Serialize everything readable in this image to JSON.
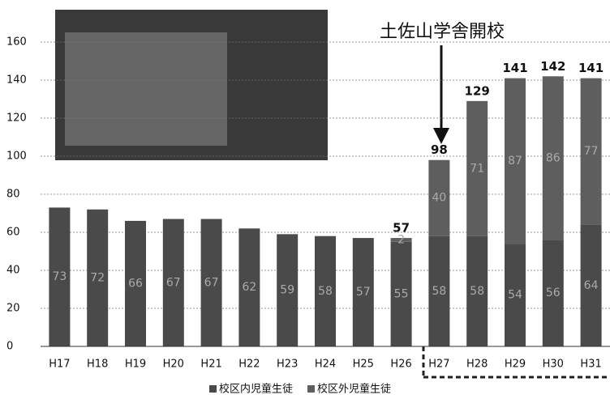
{
  "chart_data": {
    "type": "stacked_bar",
    "annotation": "土佐山学舎開校",
    "categories": [
      "H17",
      "H18",
      "H19",
      "H20",
      "H21",
      "H22",
      "H23",
      "H24",
      "H25",
      "H26",
      "H27",
      "H28",
      "H29",
      "H30",
      "H31"
    ],
    "series": [
      {
        "name": "校区内児童生徒",
        "color": "#4a4a4a",
        "values": [
          73,
          72,
          66,
          67,
          67,
          62,
          59,
          58,
          57,
          55,
          58,
          58,
          54,
          56,
          64
        ]
      },
      {
        "name": "校区外児童生徒",
        "color": "#5e5e5e",
        "values": [
          null,
          null,
          null,
          null,
          null,
          null,
          null,
          null,
          null,
          2,
          40,
          71,
          87,
          86,
          77
        ]
      }
    ],
    "totals": [
      null,
      null,
      null,
      null,
      null,
      null,
      null,
      null,
      null,
      57,
      98,
      129,
      141,
      142,
      141
    ],
    "ylim": [
      0,
      170
    ],
    "yticks": [
      0,
      20,
      40,
      60,
      80,
      100,
      120,
      140,
      160
    ],
    "grid": true
  }
}
